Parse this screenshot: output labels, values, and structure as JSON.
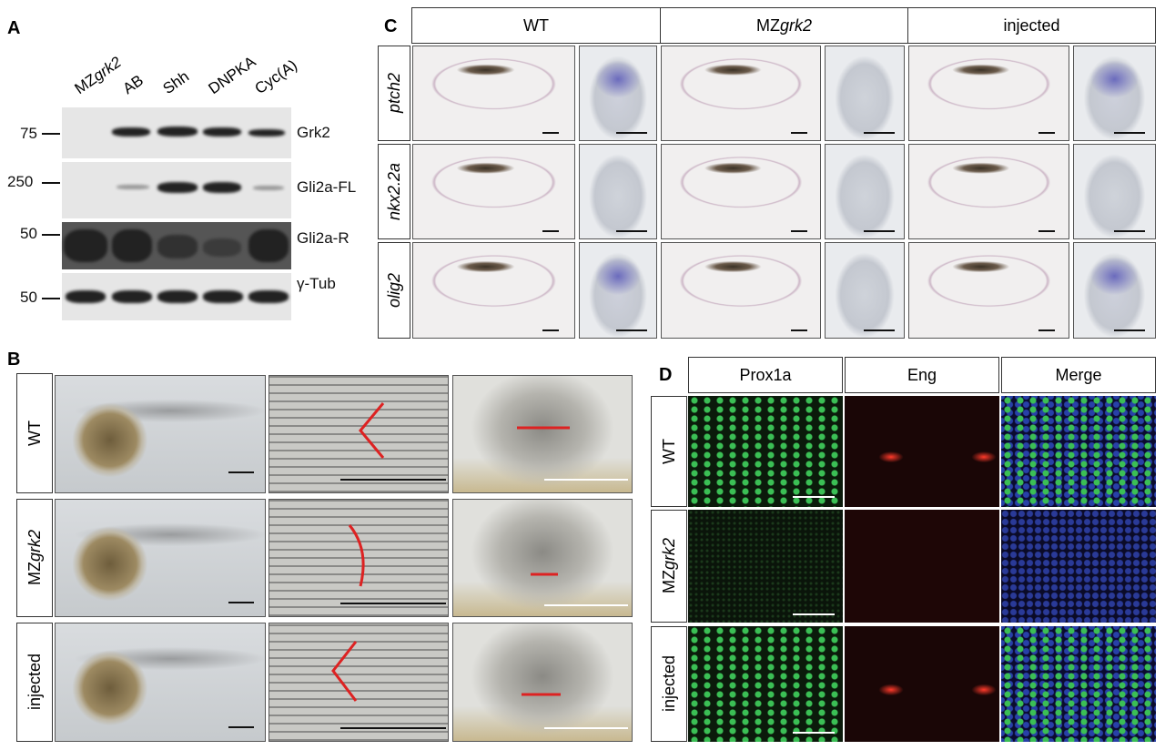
{
  "panel_a": {
    "letter": "A",
    "lanes": [
      {
        "prefix": "MZ",
        "gene": "grk2"
      },
      "AB",
      "Shh",
      "DNPKA",
      "Cyc(A)"
    ],
    "markers": [
      "75",
      "250",
      "50",
      "50"
    ],
    "bands": [
      "Grk2",
      "Gli2a-FL",
      "Gli2a-R",
      "γ-Tub"
    ]
  },
  "panel_b": {
    "letter": "B",
    "rows": [
      "WT",
      {
        "prefix": "MZ",
        "gene": "grk2"
      },
      "injected"
    ]
  },
  "panel_c": {
    "letter": "C",
    "columns": [
      "WT",
      {
        "prefix": "MZ",
        "gene": "grk2"
      },
      "injected"
    ],
    "rows": [
      "ptch2",
      "nkx2.2a",
      "olig2"
    ]
  },
  "panel_d": {
    "letter": "D",
    "columns": [
      "Prox1a",
      "Eng",
      "Merge"
    ],
    "rows": [
      "WT",
      {
        "prefix": "MZ",
        "gene": "grk2"
      },
      "injected"
    ]
  }
}
